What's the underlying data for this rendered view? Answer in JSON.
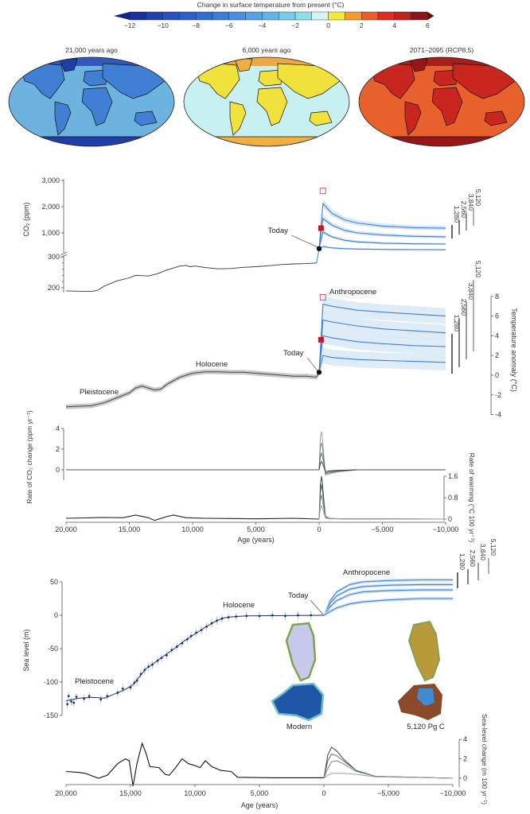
{
  "colorbar": {
    "title": "Change in surface temperature from present (°C)",
    "ticks": [
      "−12",
      "−10",
      "−8",
      "−6",
      "−4",
      "−2",
      "0",
      "2",
      "4",
      "6"
    ],
    "range": [
      -12,
      6
    ],
    "colors": [
      "#1c2f9e",
      "#2140b0",
      "#2550c0",
      "#2b5fcc",
      "#326dd5",
      "#3a7cdc",
      "#4a8de0",
      "#55a0e3",
      "#60b5e8",
      "#72cde8",
      "#8fdde8",
      "#d3f4f4",
      "#f2ea3a",
      "#f59a30",
      "#ee5a28",
      "#e02a22",
      "#c0201e",
      "#8a1418"
    ],
    "under_color": "#15228a",
    "over_color": "#5a0c10"
  },
  "maps": [
    {
      "title": "21,000 years ago",
      "ocean": "#6db3e0",
      "land": "#3f80d4",
      "polar": "#1f3ea8",
      "north": "#2a4fb8"
    },
    {
      "title": "6,000 years ago",
      "ocean": "#c8f0f0",
      "land": "#f0e23a",
      "polar": "#f0b040",
      "north": "#f0a030"
    },
    {
      "title": "2071–2095 (RCP8.5)",
      "ocean": "#e8602c",
      "land": "#c8261e",
      "polar": "#9a1616",
      "north": "#a01818"
    }
  ],
  "chart_data": [
    {
      "id": "co2",
      "type": "line",
      "ylabel": "CO₂ (ppm)",
      "yticks": [
        "3,000",
        "2,000",
        "1,000",
        "300",
        "200"
      ],
      "ytick_values": [
        3000,
        2000,
        1000,
        300,
        200
      ],
      "history": [
        [
          20000,
          190
        ],
        [
          19000,
          189
        ],
        [
          18000,
          188
        ],
        [
          17500,
          192
        ],
        [
          17000,
          205
        ],
        [
          16000,
          222
        ],
        [
          15000,
          232
        ],
        [
          14500,
          240
        ],
        [
          13500,
          238
        ],
        [
          12800,
          245
        ],
        [
          12000,
          258
        ],
        [
          11000,
          270
        ],
        [
          10500,
          272
        ],
        [
          10200,
          268
        ],
        [
          9800,
          270
        ],
        [
          9000,
          265
        ],
        [
          8000,
          261
        ],
        [
          7000,
          262
        ],
        [
          6000,
          266
        ],
        [
          5000,
          268
        ],
        [
          4000,
          271
        ],
        [
          3000,
          275
        ],
        [
          2000,
          277
        ],
        [
          1000,
          278
        ],
        [
          200,
          280
        ],
        [
          0,
          300
        ]
      ],
      "future_ages": [
        0,
        -300,
        -1000,
        -2000,
        -3000,
        -5000,
        -7500,
        -10000
      ],
      "scenarios": [
        {
          "name": "5,120",
          "values": [
            400,
            2120,
            1750,
            1500,
            1380,
            1260,
            1200,
            1180
          ]
        },
        {
          "name": "3,840",
          "values": [
            400,
            1550,
            1300,
            1100,
            1000,
            920,
            870,
            850
          ]
        },
        {
          "name": "2,560",
          "values": [
            400,
            1030,
            850,
            720,
            660,
            610,
            585,
            575
          ]
        },
        {
          "name": "1,280",
          "values": [
            400,
            480,
            430,
            400,
            385,
            372,
            365,
            360
          ]
        }
      ],
      "today_label": "Today",
      "today_value": 400,
      "marker_filled": 1180,
      "marker_open": 2600
    },
    {
      "id": "temperature",
      "type": "line",
      "ylabel": "Temperature anomaly (°C)",
      "yticks": [
        "8",
        "6",
        "4",
        "2",
        "0",
        "-2",
        "-4"
      ],
      "ytick_values": [
        8,
        6,
        4,
        2,
        0,
        -2,
        -4
      ],
      "history": [
        [
          20000,
          -3.2
        ],
        [
          18000,
          -3.1
        ],
        [
          17000,
          -2.8
        ],
        [
          16000,
          -2.3
        ],
        [
          15000,
          -1.8
        ],
        [
          14500,
          -1.3
        ],
        [
          14000,
          -1.1
        ],
        [
          13500,
          -1.3
        ],
        [
          13000,
          -1.5
        ],
        [
          12500,
          -1.4
        ],
        [
          12000,
          -0.9
        ],
        [
          11000,
          -0.2
        ],
        [
          10000,
          0.2
        ],
        [
          9000,
          0.35
        ],
        [
          8000,
          0.35
        ],
        [
          7000,
          0.3
        ],
        [
          6000,
          0.3
        ],
        [
          5000,
          0.2
        ],
        [
          4000,
          0.1
        ],
        [
          3000,
          0.0
        ],
        [
          2000,
          -0.1
        ],
        [
          1000,
          -0.1
        ],
        [
          200,
          -0.2
        ],
        [
          0,
          0.3
        ]
      ],
      "future_ages": [
        0,
        -300,
        -1000,
        -2000,
        -3000,
        -5000,
        -7500,
        -10000
      ],
      "scenarios": [
        {
          "name": "5,120",
          "values": [
            0.3,
            7.2,
            7.0,
            6.8,
            6.6,
            6.4,
            6.2,
            6.0
          ]
        },
        {
          "name": "3,840",
          "values": [
            0.3,
            5.6,
            5.4,
            5.2,
            5.0,
            4.7,
            4.5,
            4.3
          ]
        },
        {
          "name": "2,560",
          "values": [
            0.3,
            4.0,
            3.8,
            3.6,
            3.4,
            3.2,
            3.0,
            2.9
          ]
        },
        {
          "name": "1,280",
          "values": [
            0.3,
            2.0,
            1.8,
            1.7,
            1.6,
            1.5,
            1.4,
            1.3
          ]
        }
      ],
      "uncertainty": 0.8,
      "annotations": {
        "pleistocene": "Pleistocene",
        "holocene": "Holocene",
        "anthropocene": "Anthropocene",
        "today": "Today"
      },
      "today_value": 0.3,
      "marker_filled": 3.6,
      "marker_open": 7.9
    },
    {
      "id": "rate_co2",
      "type": "line",
      "ylabel": "Rate of CO₂ change (ppm yr⁻¹)",
      "yticks": [
        "4",
        "2",
        "0"
      ],
      "ytick_values": [
        4,
        2,
        0
      ],
      "history": [
        [
          20000,
          0
        ],
        [
          0,
          0
        ]
      ],
      "future_ages": [
        0,
        -100,
        -200,
        -300,
        -500,
        -800,
        -1500,
        -3000,
        -10000
      ],
      "scenarios": [
        {
          "name": "5,120",
          "values": [
            0,
            3.2,
            3.7,
            2.5,
            -0.5,
            -0.4,
            -0.2,
            0,
            0
          ]
        },
        {
          "name": "3,840",
          "values": [
            0,
            2.2,
            2.6,
            1.8,
            -0.4,
            -0.3,
            -0.15,
            0,
            0
          ]
        },
        {
          "name": "2,560",
          "values": [
            0,
            1.3,
            1.6,
            1.1,
            -0.3,
            -0.2,
            -0.1,
            0,
            0
          ]
        },
        {
          "name": "1,280",
          "values": [
            0,
            0.6,
            0.8,
            0.5,
            -0.15,
            -0.1,
            -0.05,
            0,
            0
          ]
        }
      ]
    },
    {
      "id": "rate_warming",
      "type": "line",
      "ylabel": "Rate of warming (°C 100 yr⁻¹)",
      "yticks": [
        "1.6",
        "0.8",
        "0"
      ],
      "ytick_values": [
        1.6,
        0.8,
        0
      ],
      "history": [
        [
          20000,
          0.03
        ],
        [
          17000,
          0.06
        ],
        [
          15500,
          0.05
        ],
        [
          14500,
          0.15
        ],
        [
          13500,
          0.05
        ],
        [
          13000,
          -0.05
        ],
        [
          12000,
          0.1
        ],
        [
          11500,
          0.15
        ],
        [
          10500,
          0.05
        ],
        [
          9000,
          0.03
        ],
        [
          7000,
          0.02
        ],
        [
          5000,
          0.01
        ],
        [
          2000,
          0.03
        ],
        [
          0,
          0
        ]
      ],
      "future_ages": [
        0,
        -100,
        -200,
        -300,
        -500,
        -800,
        -2000,
        -10000
      ],
      "scenarios": [
        {
          "name": "5,120",
          "values": [
            0,
            1.3,
            1.6,
            1.1,
            0.1,
            0.02,
            0.01,
            0
          ]
        },
        {
          "name": "3,840",
          "values": [
            0,
            1.0,
            1.3,
            0.9,
            0.08,
            0.02,
            0.01,
            0
          ]
        },
        {
          "name": "2,560",
          "values": [
            0,
            0.7,
            0.9,
            0.6,
            0.06,
            0.02,
            0.01,
            0
          ]
        },
        {
          "name": "1,280",
          "values": [
            0,
            0.4,
            0.5,
            0.35,
            0.04,
            0.01,
            0.01,
            0
          ]
        }
      ],
      "xlabel": "Age (years)",
      "xticks": [
        "20,000",
        "15,000",
        "10,000",
        "5,000",
        "0",
        "−5,000",
        "−10,000"
      ],
      "xtick_values": [
        20000,
        15000,
        10000,
        5000,
        0,
        -5000,
        -10000
      ]
    },
    {
      "id": "sea_level",
      "type": "line",
      "ylabel": "Sea level (m)",
      "yticks": [
        "50",
        "0",
        "-50",
        "-100",
        "-150"
      ],
      "ytick_values": [
        50,
        0,
        -50,
        -100,
        -150
      ],
      "history": [
        [
          20000,
          -128
        ],
        [
          19000,
          -124
        ],
        [
          18000,
          -123
        ],
        [
          17000,
          -124
        ],
        [
          16500,
          -120
        ],
        [
          15500,
          -112
        ],
        [
          14800,
          -104
        ],
        [
          14300,
          -92
        ],
        [
          13800,
          -80
        ],
        [
          13200,
          -72
        ],
        [
          12500,
          -62
        ],
        [
          11600,
          -50
        ],
        [
          10800,
          -38
        ],
        [
          10000,
          -28
        ],
        [
          9200,
          -18
        ],
        [
          8500,
          -10
        ],
        [
          7800,
          -4
        ],
        [
          7000,
          -2
        ],
        [
          6000,
          -1
        ],
        [
          3000,
          -0.5
        ],
        [
          0,
          0
        ]
      ],
      "proxy_points": [
        [
          19900,
          -133
        ],
        [
          19800,
          -121
        ],
        [
          19600,
          -129
        ],
        [
          19400,
          -131
        ],
        [
          19200,
          -122
        ],
        [
          18600,
          -125
        ],
        [
          18200,
          -121
        ],
        [
          17300,
          -126
        ],
        [
          16800,
          -121
        ],
        [
          16000,
          -116
        ],
        [
          15600,
          -110
        ],
        [
          15000,
          -108
        ],
        [
          14700,
          -101
        ],
        [
          14500,
          -98
        ],
        [
          14200,
          -88
        ],
        [
          13900,
          -82
        ],
        [
          13600,
          -77
        ],
        [
          13300,
          -74
        ],
        [
          12900,
          -68
        ],
        [
          12600,
          -64
        ],
        [
          12200,
          -60
        ],
        [
          11800,
          -52
        ],
        [
          11400,
          -47
        ],
        [
          11000,
          -42
        ],
        [
          10600,
          -36
        ],
        [
          10300,
          -31
        ],
        [
          9900,
          -26
        ],
        [
          9500,
          -22
        ],
        [
          9100,
          -17
        ],
        [
          8700,
          -12
        ],
        [
          8300,
          -8
        ],
        [
          7900,
          -5
        ],
        [
          7400,
          -3
        ],
        [
          6800,
          -2
        ],
        [
          6000,
          -1
        ],
        [
          5000,
          -1
        ],
        [
          4000,
          0
        ],
        [
          3000,
          -1
        ],
        [
          2000,
          0
        ],
        [
          1000,
          0
        ]
      ],
      "future_ages": [
        0,
        -500,
        -1000,
        -2000,
        -3000,
        -5000,
        -7500,
        -10000
      ],
      "scenarios": [
        {
          "name": "5,120",
          "values": [
            0,
            22,
            35,
            46,
            50,
            52,
            53,
            53
          ]
        },
        {
          "name": "3,840",
          "values": [
            0,
            18,
            29,
            39,
            43,
            45,
            46,
            46
          ]
        },
        {
          "name": "2,560",
          "values": [
            0,
            13,
            22,
            31,
            35,
            37,
            38,
            38
          ]
        },
        {
          "name": "1,280",
          "values": [
            0,
            6,
            11,
            17,
            20,
            23,
            25,
            25
          ]
        }
      ],
      "annotations": {
        "pleistocene": "Pleistocene",
        "holocene": "Holocene",
        "anthropocene": "Anthropocene",
        "today": "Today",
        "modern": "Modern",
        "future": "5,120 Pg C"
      }
    },
    {
      "id": "sea_level_rate",
      "type": "line",
      "ylabel": "Sea-level change (m 100 yr⁻¹)",
      "yticks": [
        "4",
        "2",
        "0"
      ],
      "ytick_values": [
        4,
        2,
        0
      ],
      "history": [
        [
          20000,
          0.7
        ],
        [
          19000,
          0.6
        ],
        [
          18500,
          0.5
        ],
        [
          17500,
          0.0
        ],
        [
          16800,
          0.3
        ],
        [
          16000,
          1.5
        ],
        [
          15400,
          2.0
        ],
        [
          15100,
          1.8
        ],
        [
          14800,
          -0.8
        ],
        [
          14500,
          1.5
        ],
        [
          14100,
          3.6
        ],
        [
          13800,
          2.6
        ],
        [
          13500,
          1.2
        ],
        [
          12800,
          1.1
        ],
        [
          12300,
          0.4
        ],
        [
          12000,
          0.3
        ],
        [
          11500,
          1.1
        ],
        [
          11000,
          2.0
        ],
        [
          10500,
          1.5
        ],
        [
          10000,
          1.3
        ],
        [
          9600,
          1.1
        ],
        [
          9200,
          1.8
        ],
        [
          8700,
          1.2
        ],
        [
          8000,
          0.8
        ],
        [
          7200,
          0.7
        ],
        [
          6700,
          0.1
        ],
        [
          4000,
          0.05
        ],
        [
          0,
          0.05
        ]
      ],
      "future_ages": [
        0,
        -300,
        -600,
        -1000,
        -1500,
        -2500,
        -4000,
        -10000
      ],
      "scenarios": [
        {
          "name": "5,120",
          "values": [
            0,
            2.4,
            3.2,
            2.8,
            2.0,
            0.8,
            0.2,
            0
          ]
        },
        {
          "name": "3,840",
          "values": [
            0,
            1.8,
            2.5,
            2.3,
            1.8,
            0.8,
            0.2,
            0
          ]
        },
        {
          "name": "2,560",
          "values": [
            0,
            1.0,
            1.7,
            1.8,
            1.5,
            0.7,
            0.2,
            0
          ]
        },
        {
          "name": "1,280",
          "values": [
            0,
            0.3,
            0.5,
            0.5,
            0.5,
            0.4,
            0.15,
            0
          ]
        }
      ],
      "xlabel": "Age (years)",
      "xticks": [
        "20,000",
        "15,000",
        "10,000",
        "5,000",
        "0",
        "−5,000",
        "−10,000"
      ],
      "xtick_values": [
        20000,
        15000,
        10000,
        5000,
        0,
        -5000,
        -10000
      ]
    }
  ]
}
